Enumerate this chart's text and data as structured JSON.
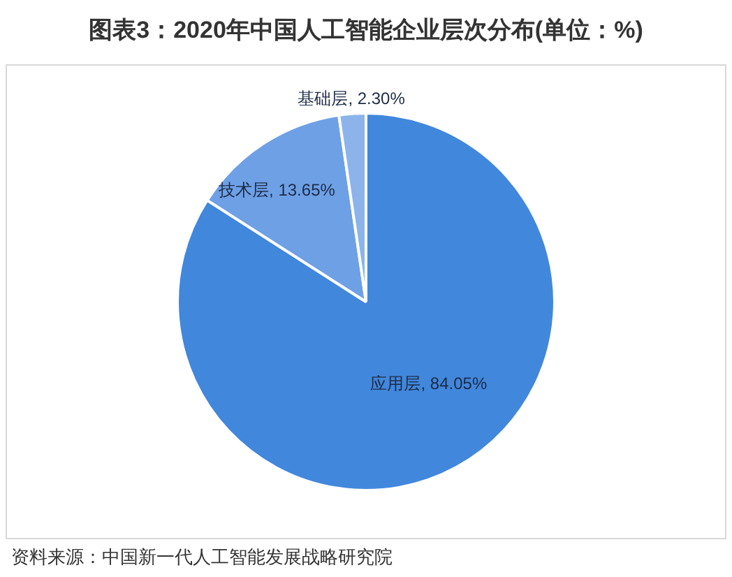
{
  "chart_data": {
    "type": "pie",
    "title": "图表3：2020年中国人工智能企业层次分布(单位：%)",
    "categories": [
      "应用层",
      "技术层",
      "基础层"
    ],
    "values": [
      84.05,
      13.65,
      2.3
    ],
    "value_labels": [
      "84.05%",
      "13.65%",
      "2.30%"
    ],
    "colors": [
      "#4187dc",
      "#6ea0e6",
      "#8cb4eb"
    ],
    "legend": false,
    "annotations": [
      "资料来源：中国新一代人工智能发展战略研究院"
    ]
  }
}
